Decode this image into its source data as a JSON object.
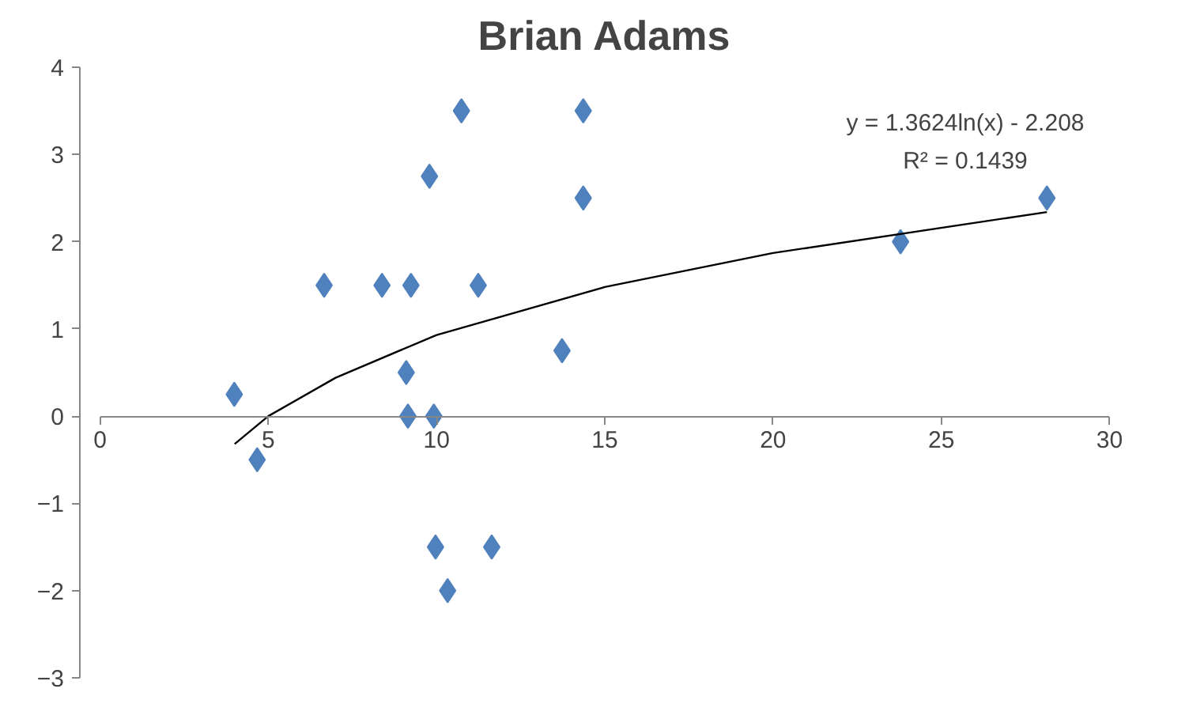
{
  "chart_data": {
    "type": "scatter",
    "title": "Brian Adams",
    "x": [
      3.99,
      4.67,
      6.66,
      8.38,
      9.24,
      9.1,
      9.15,
      9.92,
      9.79,
      10.74,
      11.24,
      9.97,
      10.33,
      11.64,
      13.73,
      14.36,
      14.36,
      23.79,
      28.14
    ],
    "series": [
      {
        "marker": "diamond",
        "color": "#4f81bd",
        "values": [
          0.25,
          -0.5,
          1.5,
          1.5,
          1.5,
          0.5,
          0,
          0,
          2.75,
          3.5,
          1.5,
          -1.5,
          -2,
          -1.5,
          0.75,
          3.5,
          2.5,
          2,
          2.5
        ]
      },
      {
        "type": "line",
        "color": "#000000",
        "x": [
          4,
          5,
          7,
          10,
          15,
          20,
          28.14
        ],
        "values": [
          -0.32,
          0.0,
          0.44,
          0.93,
          1.48,
          1.87,
          2.34
        ]
      }
    ],
    "annotations": [
      "y = 1.3624ln(x) - 2.208",
      "R² = 0.1439"
    ],
    "xlim": [
      0,
      30
    ],
    "xticks": [
      0,
      5,
      10,
      15,
      20,
      25,
      30
    ],
    "ylim": [
      -3,
      4
    ],
    "yticks": [
      -3,
      -2,
      -1,
      0,
      1,
      2,
      3,
      4
    ],
    "grid": false
  }
}
